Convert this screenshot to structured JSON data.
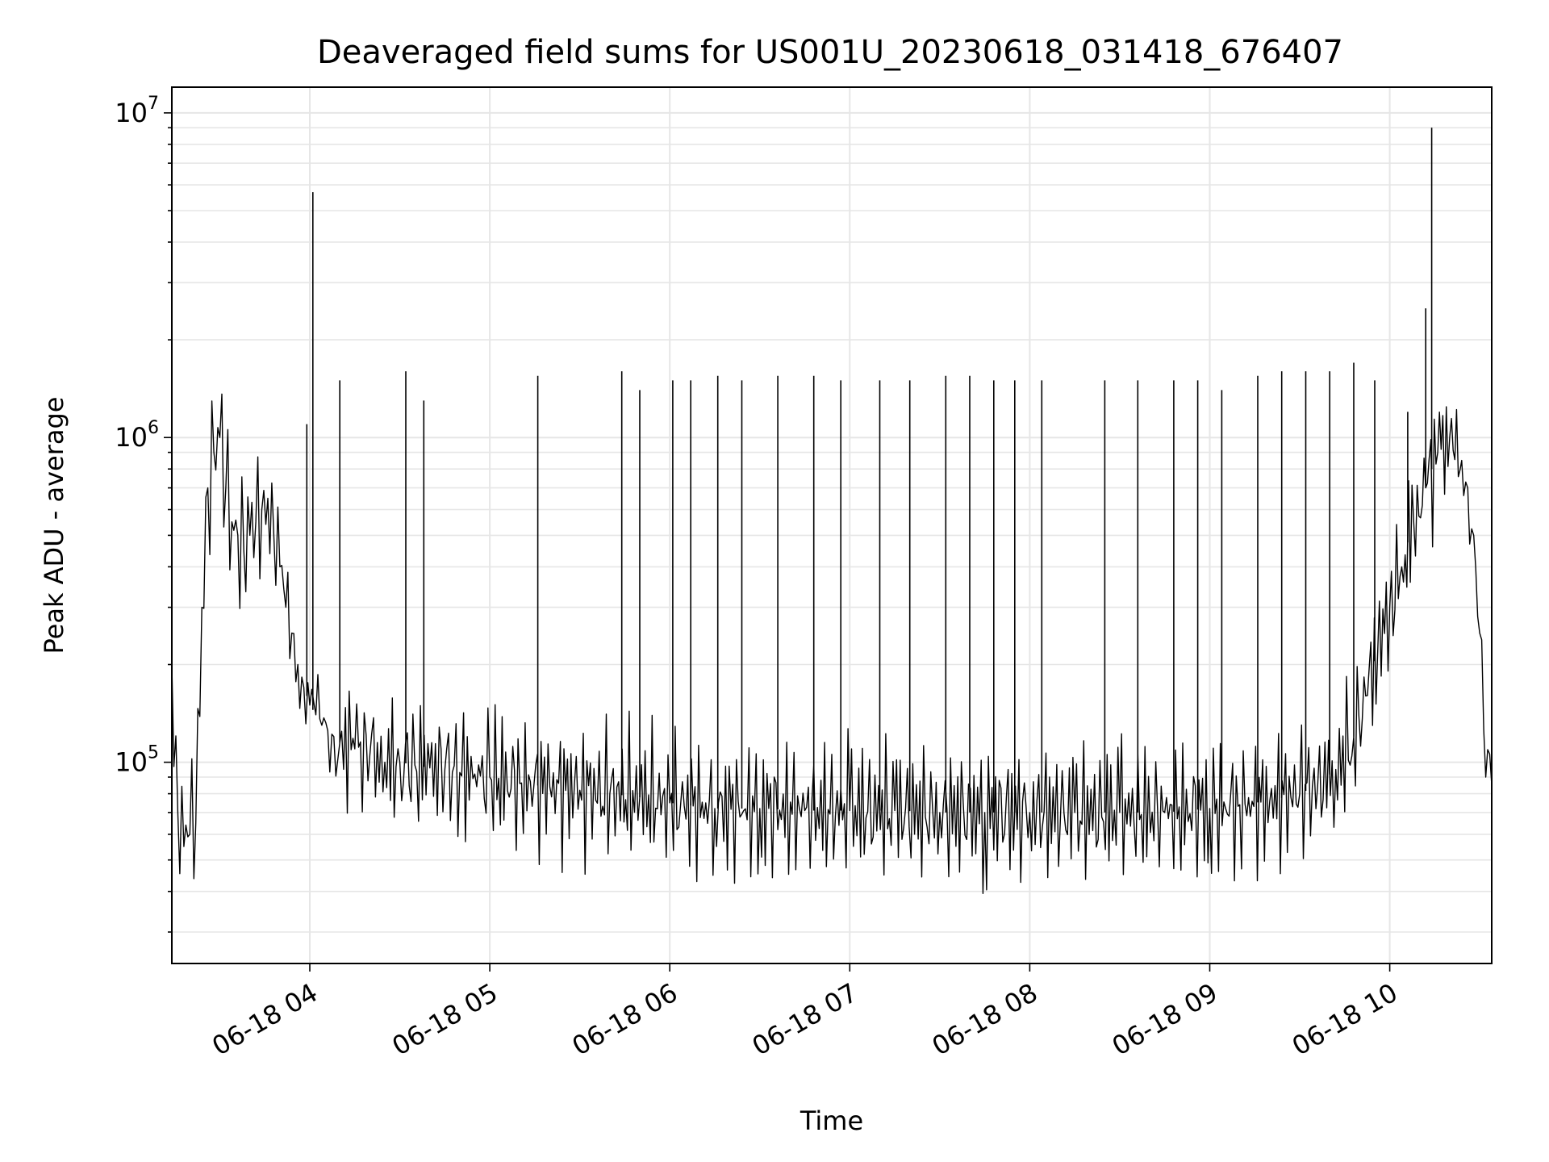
{
  "chart_data": {
    "type": "line",
    "title": "Deaveraged field sums for US001U_20230618_031418_676407",
    "xlabel": "Time",
    "ylabel": "Peak ADU - average",
    "y_scale": "log",
    "ylim": [
      24000,
      12000000
    ],
    "xlim": [
      "2023-06-18 03:14",
      "2023-06-18 10:34"
    ],
    "grid": true,
    "x_ticks": [
      {
        "label": "06-18 04",
        "time": "2023-06-18 04:00"
      },
      {
        "label": "06-18 05",
        "time": "2023-06-18 05:00"
      },
      {
        "label": "06-18 06",
        "time": "2023-06-18 06:00"
      },
      {
        "label": "06-18 07",
        "time": "2023-06-18 07:00"
      },
      {
        "label": "06-18 08",
        "time": "2023-06-18 08:00"
      },
      {
        "label": "06-18 09",
        "time": "2023-06-18 09:00"
      },
      {
        "label": "06-18 10",
        "time": "2023-06-18 10:00"
      }
    ],
    "y_ticks": [
      {
        "base": "10",
        "exp": "5",
        "value": 100000
      },
      {
        "base": "10",
        "exp": "6",
        "value": 1000000
      },
      {
        "base": "10",
        "exp": "7",
        "value": 10000000
      }
    ],
    "series_color": "#000000",
    "series": [
      {
        "x": [
          "2023-06-18 03:14",
          "2023-06-18 03:16",
          "2023-06-18 03:18",
          "2023-06-18 03:20",
          "2023-06-18 03:22",
          "2023-06-18 03:24",
          "2023-06-18 03:26",
          "2023-06-18 03:28",
          "2023-06-18 03:30",
          "2023-06-18 03:32",
          "2023-06-18 03:34",
          "2023-06-18 03:36",
          "2023-06-18 03:38",
          "2023-06-18 03:40",
          "2023-06-18 03:42",
          "2023-06-18 03:44",
          "2023-06-18 03:46",
          "2023-06-18 03:48",
          "2023-06-18 03:50",
          "2023-06-18 03:52",
          "2023-06-18 03:54",
          "2023-06-18 03:56",
          "2023-06-18 03:58",
          "2023-06-18 04:00",
          "2023-06-18 04:02",
          "2023-06-18 04:04",
          "2023-06-18 04:06",
          "2023-06-18 04:08",
          "2023-06-18 04:10",
          "2023-06-18 04:15",
          "2023-06-18 04:20",
          "2023-06-18 04:25",
          "2023-06-18 04:30",
          "2023-06-18 04:35",
          "2023-06-18 04:40",
          "2023-06-18 04:45",
          "2023-06-18 04:50",
          "2023-06-18 04:55",
          "2023-06-18 05:00",
          "2023-06-18 05:10",
          "2023-06-18 05:20",
          "2023-06-18 05:30",
          "2023-06-18 05:40",
          "2023-06-18 05:50",
          "2023-06-18 06:00",
          "2023-06-18 06:15",
          "2023-06-18 06:30",
          "2023-06-18 06:45",
          "2023-06-18 07:00",
          "2023-06-18 07:15",
          "2023-06-18 07:30",
          "2023-06-18 07:45",
          "2023-06-18 08:00",
          "2023-06-18 08:15",
          "2023-06-18 08:30",
          "2023-06-18 08:45",
          "2023-06-18 09:00",
          "2023-06-18 09:10",
          "2023-06-18 09:20",
          "2023-06-18 09:30",
          "2023-06-18 09:36",
          "2023-06-18 09:42",
          "2023-06-18 09:48",
          "2023-06-18 09:52",
          "2023-06-18 09:56",
          "2023-06-18 10:00",
          "2023-06-18 10:04",
          "2023-06-18 10:08",
          "2023-06-18 10:12",
          "2023-06-18 10:16",
          "2023-06-18 10:20",
          "2023-06-18 10:24",
          "2023-06-18 10:26",
          "2023-06-18 10:28",
          "2023-06-18 10:30",
          "2023-06-18 10:32",
          "2023-06-18 10:34"
        ],
        "values": [
          200000,
          70000,
          55000,
          60000,
          65000,
          300000,
          700000,
          900000,
          1000000,
          700000,
          550000,
          500000,
          450000,
          500000,
          550000,
          600000,
          650000,
          500000,
          400000,
          300000,
          250000,
          200000,
          170000,
          150000,
          140000,
          130000,
          125000,
          120000,
          115000,
          110000,
          105000,
          100000,
          100000,
          98000,
          96000,
          95000,
          93000,
          92000,
          90000,
          86000,
          84000,
          82000,
          80000,
          78000,
          75000,
          72000,
          72000,
          71000,
          71000,
          71000,
          70000,
          70000,
          70000,
          70000,
          70000,
          70000,
          72000,
          74000,
          76000,
          80000,
          85000,
          95000,
          120000,
          160000,
          220000,
          300000,
          400000,
          550000,
          700000,
          900000,
          1000000,
          850000,
          700000,
          500000,
          250000,
          90000,
          85000
        ]
      }
    ],
    "spikes": [
      {
        "x": "2023-06-18 03:59",
        "y": 1100000
      },
      {
        "x": "2023-06-18 04:01",
        "y": 5700000
      },
      {
        "x": "2023-06-18 04:10",
        "y": 1500000
      },
      {
        "x": "2023-06-18 04:32",
        "y": 1600000
      },
      {
        "x": "2023-06-18 04:38",
        "y": 1300000
      },
      {
        "x": "2023-06-18 05:16",
        "y": 1550000
      },
      {
        "x": "2023-06-18 05:44",
        "y": 1600000
      },
      {
        "x": "2023-06-18 05:50",
        "y": 1400000
      },
      {
        "x": "2023-06-18 06:01",
        "y": 1500000
      },
      {
        "x": "2023-06-18 06:07",
        "y": 1500000
      },
      {
        "x": "2023-06-18 06:16",
        "y": 1550000
      },
      {
        "x": "2023-06-18 06:24",
        "y": 1500000
      },
      {
        "x": "2023-06-18 06:36",
        "y": 1550000
      },
      {
        "x": "2023-06-18 06:48",
        "y": 1550000
      },
      {
        "x": "2023-06-18 06:57",
        "y": 1500000
      },
      {
        "x": "2023-06-18 07:10",
        "y": 1500000
      },
      {
        "x": "2023-06-18 07:20",
        "y": 1500000
      },
      {
        "x": "2023-06-18 07:32",
        "y": 1550000
      },
      {
        "x": "2023-06-18 07:40",
        "y": 1550000
      },
      {
        "x": "2023-06-18 07:48",
        "y": 1500000
      },
      {
        "x": "2023-06-18 07:55",
        "y": 1500000
      },
      {
        "x": "2023-06-18 08:04",
        "y": 1500000
      },
      {
        "x": "2023-06-18 08:25",
        "y": 1500000
      },
      {
        "x": "2023-06-18 08:36",
        "y": 1500000
      },
      {
        "x": "2023-06-18 08:48",
        "y": 1500000
      },
      {
        "x": "2023-06-18 08:56",
        "y": 1500000
      },
      {
        "x": "2023-06-18 09:04",
        "y": 1400000
      },
      {
        "x": "2023-06-18 09:16",
        "y": 1550000
      },
      {
        "x": "2023-06-18 09:24",
        "y": 1600000
      },
      {
        "x": "2023-06-18 09:32",
        "y": 1600000
      },
      {
        "x": "2023-06-18 09:40",
        "y": 1600000
      },
      {
        "x": "2023-06-18 09:48",
        "y": 1700000
      },
      {
        "x": "2023-06-18 09:55",
        "y": 1500000
      },
      {
        "x": "2023-06-18 10:06",
        "y": 1200000
      },
      {
        "x": "2023-06-18 10:12",
        "y": 2500000
      },
      {
        "x": "2023-06-18 10:14",
        "y": 9000000
      }
    ]
  }
}
